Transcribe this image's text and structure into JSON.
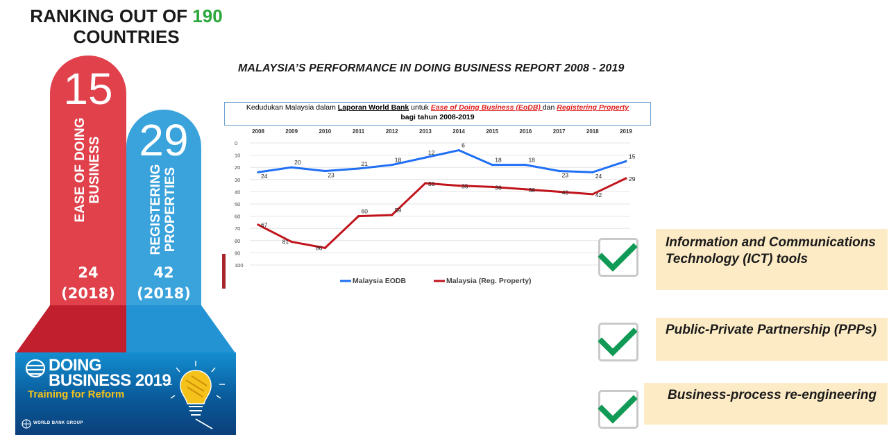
{
  "heading": {
    "prefix": "RANKING OUT OF ",
    "highlight": "190",
    "suffix": "COUNTRIES"
  },
  "pillars": {
    "eodb": {
      "rank": "15",
      "label_line1": "EASE OF DOING",
      "label_line2": "BUSINESS",
      "prev_value": "24",
      "prev_year": "(2018)",
      "color": "#e0414b"
    },
    "property": {
      "rank": "29",
      "label_line1": "REGISTERING",
      "label_line2": "PROPERTIES",
      "prev_value": "42",
      "prev_year": "(2018)",
      "color": "#3aa3dc"
    }
  },
  "banner": {
    "line1": "DOING",
    "line2": "BUSINESS 2019",
    "subtitle": "Training for Reform",
    "org": "WORLD BANK GROUP"
  },
  "chart_title": "MALAYSIA’S PERFORMANCE IN DOING BUSINESS REPORT 2008 - 2019",
  "caption": {
    "part1": "Kedudukan Malaysia dalam ",
    "part2": "Laporan World Bank",
    "part3": " untuk ",
    "part4": "Ease of Doing Business (EoDB) ",
    "part5": "dan ",
    "part6": "Registering Property",
    "line2": "bagi tahun 2008-2019"
  },
  "chart_data": {
    "type": "line",
    "x": [
      "2008",
      "2009",
      "2010",
      "2011",
      "2012",
      "2013",
      "2014",
      "2015",
      "2016",
      "2017",
      "2018",
      "2019"
    ],
    "y_ticks": [
      "0",
      "10",
      "20",
      "30",
      "40",
      "50",
      "60",
      "70",
      "80",
      "90",
      "100"
    ],
    "ylim": [
      0,
      100
    ],
    "y_inverted": true,
    "grid": true,
    "legend_position": "bottom",
    "series": [
      {
        "name": "Malaysia EODB",
        "color": "#1f6ff5",
        "values": [
          24,
          20,
          23,
          21,
          18,
          12,
          6,
          18,
          18,
          23,
          24,
          15
        ]
      },
      {
        "name": "Malaysia (Reg. Property)",
        "color": "#c0141c",
        "values": [
          67,
          81,
          86,
          60,
          59,
          33,
          35,
          36,
          38,
          40,
          42,
          29
        ]
      }
    ]
  },
  "checklist": [
    {
      "text": "Information and Communications Technology (ICT) tools"
    },
    {
      "text": "Public-Private Partnership (PPPs)"
    },
    {
      "text": "Business-process re-engineering"
    }
  ],
  "check_color": "#109a55"
}
